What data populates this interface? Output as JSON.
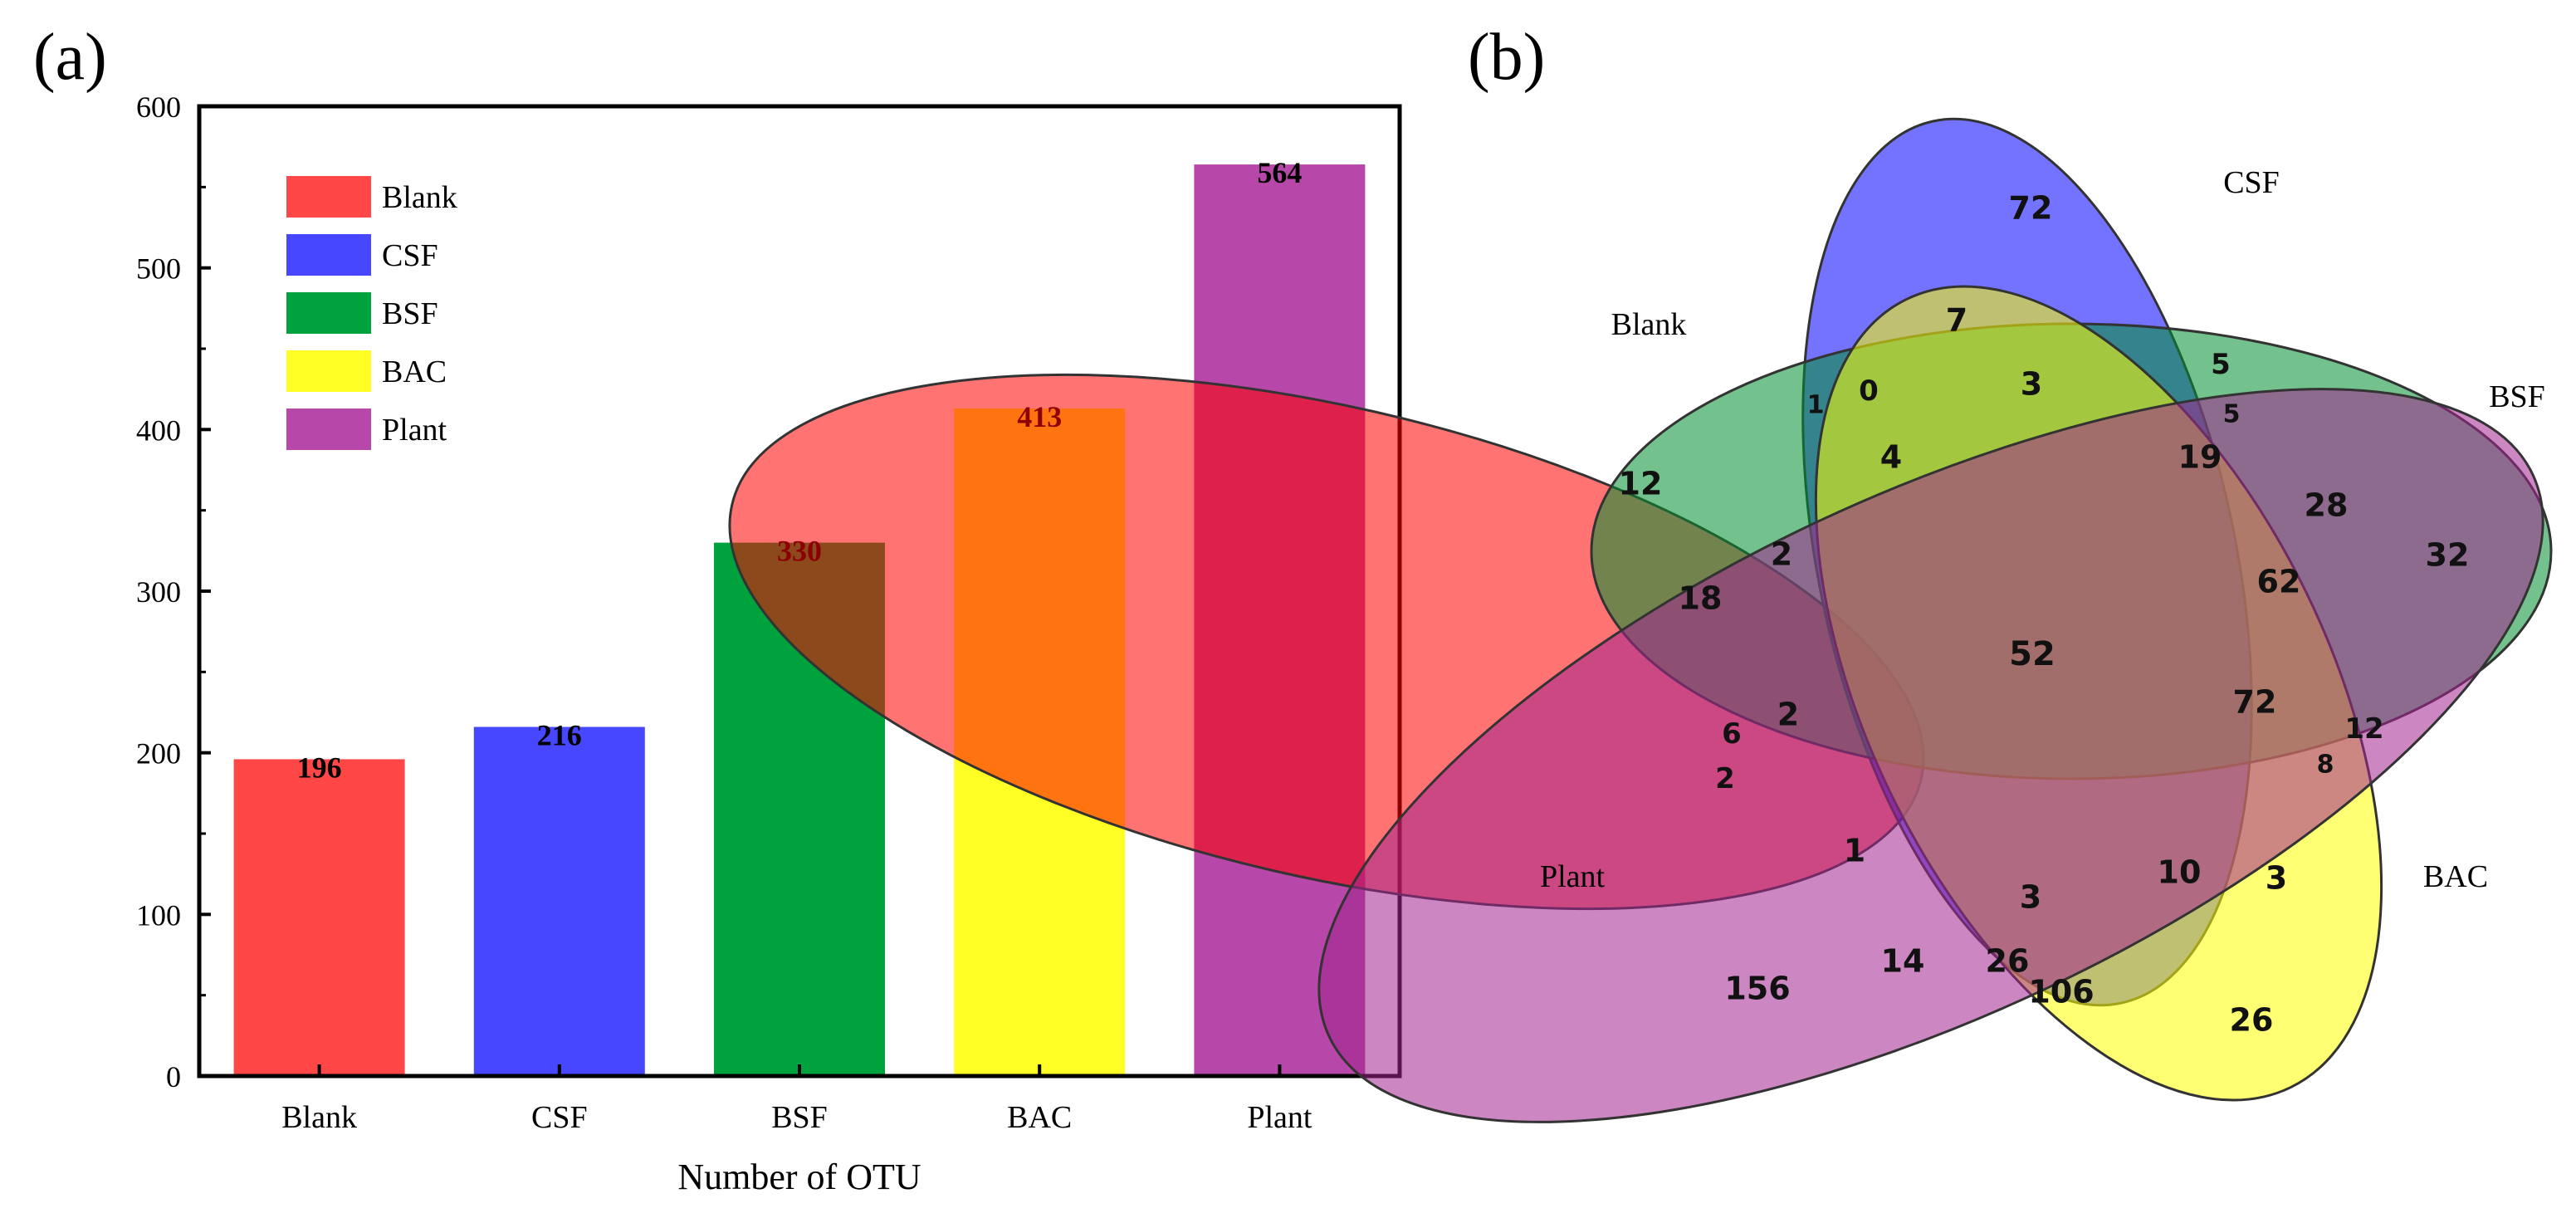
{
  "chart_data": [
    {
      "panel_label": "(a)",
      "type": "bar",
      "title": "",
      "xlabel": "Number of OTU",
      "ylabel": "",
      "ylim": [
        0,
        600
      ],
      "yticks": [
        0,
        100,
        200,
        300,
        400,
        500,
        600
      ],
      "grid": false,
      "legend_position": "top-left",
      "categories": [
        "Blank",
        "CSF",
        "BSF",
        "BAC",
        "Plant"
      ],
      "values": [
        196,
        216,
        330,
        413,
        564
      ],
      "colors": [
        "#ff4747",
        "#4747ff",
        "#00a23d",
        "#ffff26",
        "#b747a8"
      ],
      "legend": [
        "Blank",
        "CSF",
        "BSF",
        "BAC",
        "Plant"
      ]
    },
    {
      "panel_label": "(b)",
      "type": "venn",
      "sets": [
        {
          "name": "Blank",
          "color": "#ff0000"
        },
        {
          "name": "CSF",
          "color": "#0000ff"
        },
        {
          "name": "BSF",
          "color": "#008f2f"
        },
        {
          "name": "BAC",
          "color": "#ffff00"
        },
        {
          "name": "Plant",
          "color": "#a3248f"
        }
      ],
      "regions": [
        "72",
        "7",
        "5",
        "3",
        "0",
        "1",
        "12",
        "4",
        "5",
        "19",
        "28",
        "32",
        "2",
        "18",
        "62",
        "52",
        "2",
        "72",
        "6",
        "12",
        "2",
        "8",
        "1",
        "3",
        "10",
        "3",
        "14",
        "26",
        "106",
        "156",
        "26"
      ]
    }
  ]
}
